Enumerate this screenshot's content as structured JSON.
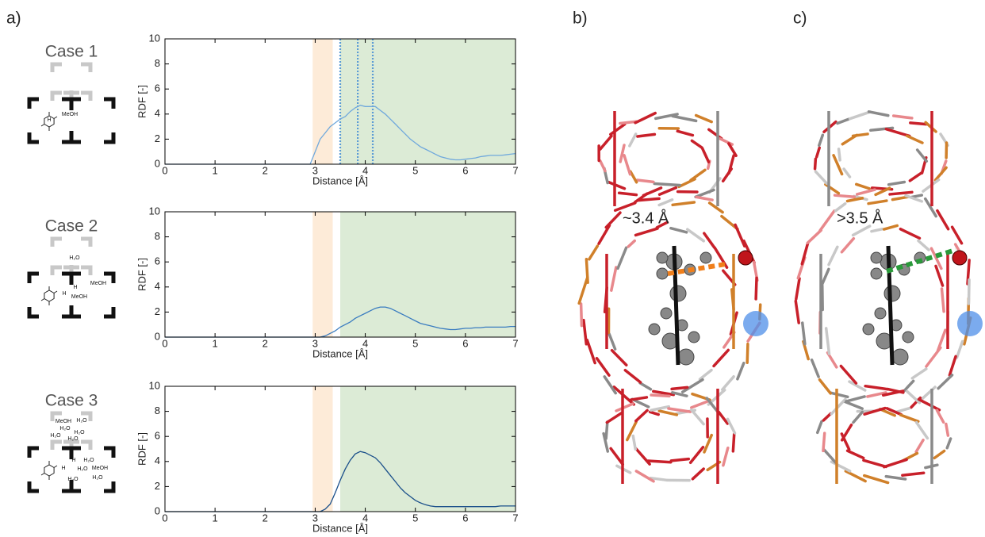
{
  "panel_labels": [
    "a)",
    "b)",
    "c)"
  ],
  "cases": [
    {
      "title": "Case 1",
      "labels": [
        "MeOH",
        "H"
      ]
    },
    {
      "title": "Case 2",
      "labels": [
        "H₂O",
        "MeOH",
        "H",
        "H",
        "MeOH"
      ]
    },
    {
      "title": "Case 3",
      "labels": [
        "MeOH",
        "H₂O",
        "H₂O",
        "H₂O",
        "H₂O",
        "H₂O",
        "H",
        "H₂O",
        "MeOH",
        "H",
        "H₂O",
        "H₂O",
        "H₂O"
      ]
    }
  ],
  "annotations": [
    {
      "text": "~3.4 Å",
      "color": "#f07f1b"
    },
    {
      "text": ">3.5 Å",
      "color": "#2a9a3a"
    }
  ],
  "chart_data": [
    {
      "type": "line",
      "xlabel": "Distance [Å]",
      "ylabel": "RDF [-]",
      "xlim": [
        0,
        7
      ],
      "ylim": [
        0,
        10
      ],
      "xticks": [
        0,
        1,
        2,
        3,
        4,
        5,
        6,
        7
      ],
      "yticks": [
        0,
        2,
        4,
        6,
        8,
        10
      ],
      "color": "#6fa8dc",
      "shaded_regions": [
        {
          "xlim": [
            2.95,
            3.35
          ],
          "color": "#fdebd8"
        },
        {
          "xlim": [
            3.5,
            7
          ],
          "color": "#dcebd6"
        }
      ],
      "vlines": [
        3.5,
        3.85,
        4.15
      ],
      "x": [
        0,
        2.9,
        3.0,
        3.1,
        3.2,
        3.3,
        3.4,
        3.5,
        3.6,
        3.7,
        3.8,
        3.9,
        4.0,
        4.1,
        4.2,
        4.3,
        4.4,
        4.5,
        4.6,
        4.7,
        4.8,
        4.9,
        5.0,
        5.1,
        5.2,
        5.3,
        5.4,
        5.5,
        5.6,
        5.7,
        5.8,
        5.9,
        6.0,
        6.1,
        6.2,
        6.3,
        6.4,
        6.5,
        6.6,
        6.7,
        6.8,
        6.9,
        7.0
      ],
      "values": [
        0,
        0,
        1.0,
        2.0,
        2.5,
        3.0,
        3.3,
        3.6,
        3.8,
        4.2,
        4.5,
        4.7,
        4.6,
        4.6,
        4.6,
        4.3,
        4.0,
        3.6,
        3.2,
        2.8,
        2.4,
        2.0,
        1.7,
        1.4,
        1.2,
        1.0,
        0.8,
        0.6,
        0.5,
        0.4,
        0.35,
        0.35,
        0.4,
        0.45,
        0.5,
        0.6,
        0.65,
        0.7,
        0.7,
        0.7,
        0.75,
        0.8,
        0.85
      ]
    },
    {
      "type": "line",
      "xlabel": "Distance [Å]",
      "ylabel": "RDF [-]",
      "xlim": [
        0,
        7
      ],
      "ylim": [
        0,
        10
      ],
      "xticks": [
        0,
        1,
        2,
        3,
        4,
        5,
        6,
        7
      ],
      "yticks": [
        0,
        2,
        4,
        6,
        8,
        10
      ],
      "color": "#3a7cc0",
      "shaded_regions": [
        {
          "xlim": [
            2.95,
            3.35
          ],
          "color": "#fdebd8"
        },
        {
          "xlim": [
            3.5,
            7
          ],
          "color": "#dcebd6"
        }
      ],
      "x": [
        0,
        2.9,
        3.0,
        3.1,
        3.2,
        3.3,
        3.4,
        3.5,
        3.6,
        3.7,
        3.8,
        3.9,
        4.0,
        4.1,
        4.2,
        4.3,
        4.4,
        4.5,
        4.6,
        4.7,
        4.8,
        4.9,
        5.0,
        5.1,
        5.2,
        5.3,
        5.4,
        5.5,
        5.6,
        5.7,
        5.8,
        5.9,
        6.0,
        6.1,
        6.2,
        6.3,
        6.4,
        6.5,
        6.6,
        6.7,
        6.8,
        6.9,
        7.0
      ],
      "values": [
        0,
        0,
        0,
        0,
        0.1,
        0.3,
        0.5,
        0.8,
        1.0,
        1.2,
        1.5,
        1.7,
        1.9,
        2.1,
        2.3,
        2.4,
        2.4,
        2.3,
        2.1,
        1.9,
        1.7,
        1.5,
        1.3,
        1.1,
        1.0,
        0.9,
        0.8,
        0.7,
        0.65,
        0.6,
        0.6,
        0.65,
        0.7,
        0.7,
        0.75,
        0.75,
        0.8,
        0.8,
        0.8,
        0.8,
        0.8,
        0.85,
        0.85
      ]
    },
    {
      "type": "line",
      "xlabel": "Distance [Å]",
      "ylabel": "RDF [-]",
      "xlim": [
        0,
        7
      ],
      "ylim": [
        0,
        10
      ],
      "xticks": [
        0,
        1,
        2,
        3,
        4,
        5,
        6,
        7
      ],
      "yticks": [
        0,
        2,
        4,
        6,
        8,
        10
      ],
      "color": "#1a4f8a",
      "shaded_regions": [
        {
          "xlim": [
            2.95,
            3.35
          ],
          "color": "#fdebd8"
        },
        {
          "xlim": [
            3.5,
            7
          ],
          "color": "#dcebd6"
        }
      ],
      "x": [
        0,
        2.9,
        3.0,
        3.1,
        3.2,
        3.3,
        3.4,
        3.5,
        3.6,
        3.7,
        3.8,
        3.9,
        4.0,
        4.1,
        4.2,
        4.3,
        4.4,
        4.5,
        4.6,
        4.7,
        4.8,
        4.9,
        5.0,
        5.1,
        5.2,
        5.3,
        5.4,
        5.5,
        5.6,
        5.7,
        5.8,
        5.9,
        6.0,
        6.1,
        6.2,
        6.3,
        6.4,
        6.5,
        6.6,
        6.7,
        6.8,
        6.9,
        7.0
      ],
      "values": [
        0,
        0,
        0,
        0,
        0.2,
        0.6,
        1.5,
        2.5,
        3.4,
        4.1,
        4.6,
        4.8,
        4.7,
        4.5,
        4.3,
        3.9,
        3.4,
        2.9,
        2.4,
        1.9,
        1.5,
        1.2,
        0.9,
        0.7,
        0.55,
        0.45,
        0.4,
        0.4,
        0.4,
        0.4,
        0.4,
        0.4,
        0.4,
        0.4,
        0.4,
        0.4,
        0.4,
        0.4,
        0.4,
        0.45,
        0.45,
        0.45,
        0.45
      ]
    }
  ]
}
